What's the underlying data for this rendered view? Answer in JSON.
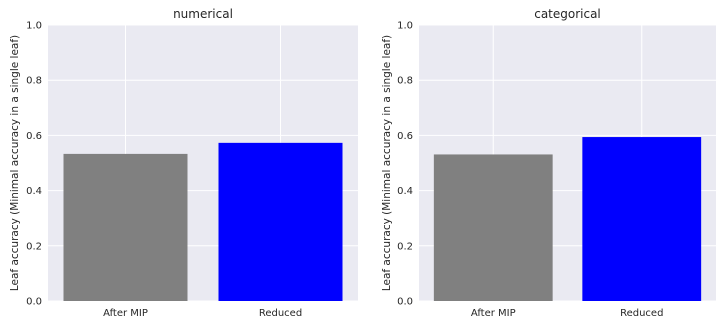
{
  "chart_data": [
    {
      "type": "bar",
      "title": "numerical",
      "ylabel": "Leaf accuracy (Minimal accuracy in a single leaf)",
      "xlabel": "",
      "categories": [
        "After MIP",
        "Reduced"
      ],
      "values": [
        0.533,
        0.573
      ],
      "colors": [
        "#808080",
        "#0000ff"
      ],
      "ylim": [
        0.0,
        1.0
      ],
      "yticks": [
        0.0,
        0.2,
        0.4,
        0.6,
        0.8,
        1.0
      ],
      "ytick_labels": [
        "0.0",
        "0.2",
        "0.4",
        "0.6",
        "0.8",
        "1.0"
      ],
      "grid": true
    },
    {
      "type": "bar",
      "title": "categorical",
      "ylabel": "Leaf accuracy (Minimal accuracy in a single leaf)",
      "xlabel": "",
      "categories": [
        "After MIP",
        "Reduced"
      ],
      "values": [
        0.531,
        0.594
      ],
      "colors": [
        "#808080",
        "#0000ff"
      ],
      "ylim": [
        0.0,
        1.0
      ],
      "yticks": [
        0.0,
        0.2,
        0.4,
        0.6,
        0.8,
        1.0
      ],
      "ytick_labels": [
        "0.0",
        "0.2",
        "0.4",
        "0.6",
        "0.8",
        "1.0"
      ],
      "grid": true
    }
  ],
  "style": {
    "axes_background": "#eaeaf2",
    "grid_color": "#ffffff",
    "text_color": "#262626"
  }
}
